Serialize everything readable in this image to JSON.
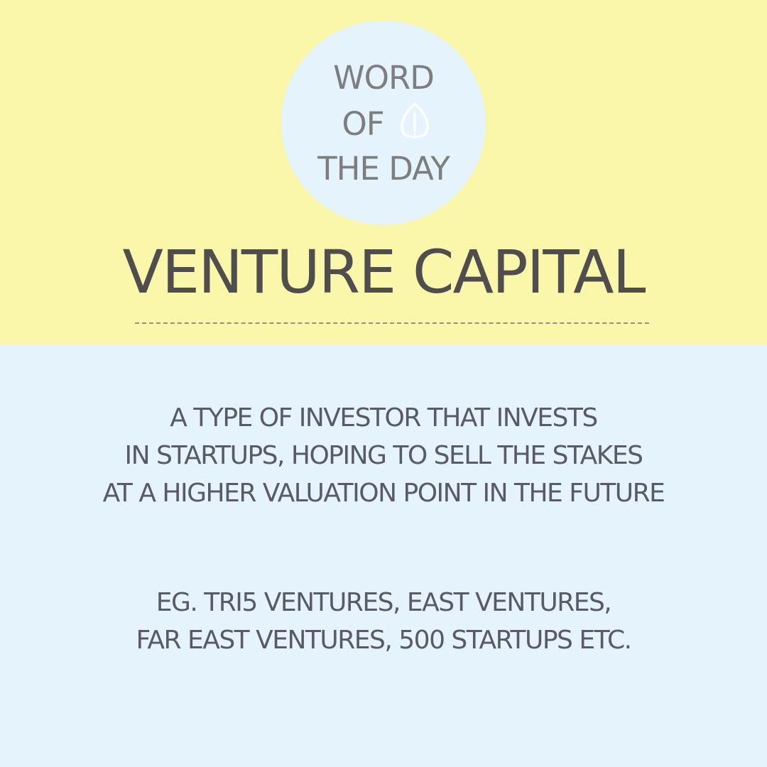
{
  "colors": {
    "top_background": "#faf7ab",
    "bottom_background": "#e4f3fc",
    "badge_background": "#e4f3fc"
  },
  "badge": {
    "line1": "WORD",
    "line2": "OF",
    "line3": "THE DAY",
    "icon": "leaf-icon"
  },
  "title": "VENTURE CAPITAL",
  "definition": {
    "lines": [
      "A TYPE OF INVESTOR THAT INVESTS",
      "IN STARTUPS, HOPING TO SELL THE STAKES",
      "AT A HIGHER VALUATION POINT IN THE FUTURE"
    ]
  },
  "examples": {
    "lines": [
      "EG. TRI5 VENTURES, EAST VENTURES,",
      "FAR EAST VENTURES, 500 STARTUPS ETC."
    ]
  }
}
